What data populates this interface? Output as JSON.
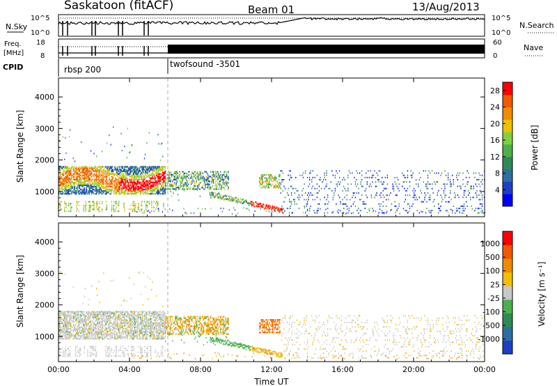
{
  "header": {
    "station": "Saskatoon (fitACF)",
    "beam": "Beam 01",
    "date": "13/Aug/2013"
  },
  "labels": {
    "nsky": "N.Sky",
    "nsearch": "N.Search",
    "freq_line1": "Freq.",
    "freq_line2": "[MHz]",
    "nave": "Nave",
    "cpid": "CPID",
    "cpid_1": "rbsp 200",
    "cpid_2": "twofsound -3501",
    "nsky_ticks": [
      "10^5",
      "10^0"
    ],
    "nsearch_ticks": [
      "10^5",
      "10^0"
    ],
    "freq_ticks": [
      "18",
      "8"
    ],
    "nave_ticks": [
      "60",
      "0"
    ]
  },
  "colors": {
    "power_scale": [
      "#0000ff",
      "#1e3fc8",
      "#2f6ea0",
      "#2e8a55",
      "#4cb04c",
      "#7fd23c",
      "#f0c000",
      "#f08c00",
      "#f05a00",
      "#ff0000"
    ],
    "velocity_scale": [
      "#1e3fc8",
      "#2f6ea0",
      "#2e8a55",
      "#4cb04c",
      "#c8c8c8",
      "#f0c000",
      "#f08c00",
      "#f05a00",
      "#ff0000"
    ],
    "dash": "#aaaaaa"
  },
  "chart_data": [
    {
      "type": "heatmap",
      "title": "",
      "xlabel": "",
      "ylabel": "Slant Range [km]",
      "x_ticks": [
        "00:00",
        "04:00",
        "08:00",
        "12:00",
        "16:00",
        "20:00",
        "00:00"
      ],
      "xlim_hours": [
        0,
        24
      ],
      "y_ticks": [
        "1000",
        "2000",
        "3000",
        "4000"
      ],
      "ylim": [
        200,
        4600
      ],
      "colorbar_label": "Power [dB]",
      "colorbar_ticks": [
        "4",
        "8",
        "12",
        "16",
        "20",
        "24",
        "28"
      ],
      "colorbar_range": [
        0,
        30
      ]
    },
    {
      "type": "heatmap",
      "title": "",
      "xlabel": "Time UT",
      "ylabel": "Slant Range [km]",
      "x_ticks": [
        "00:00",
        "04:00",
        "08:00",
        "12:00",
        "16:00",
        "20:00",
        "00:00"
      ],
      "xlim_hours": [
        0,
        24
      ],
      "y_ticks": [
        "1000",
        "2000",
        "3000",
        "4000"
      ],
      "ylim": [
        200,
        4600
      ],
      "colorbar_label": "Velocity [m s⁻¹]",
      "colorbar_ticks": [
        "1000",
        "500",
        "100",
        "25",
        "-25",
        "-100",
        "-500",
        "-1000"
      ]
    }
  ]
}
